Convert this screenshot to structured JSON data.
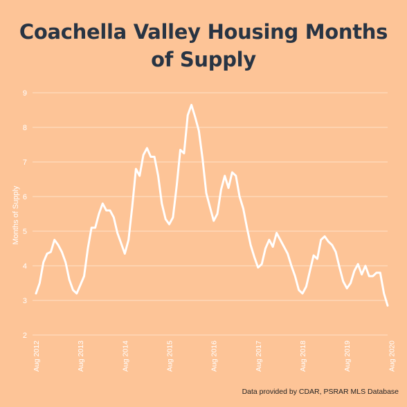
{
  "title_lines": [
    "Coachella Valley Housing Months",
    "of Supply"
  ],
  "source_note": "Data provided by CDAR, PSRAR MLS Database",
  "colors": {
    "background": "#FDC497",
    "line": "#FFFFFF",
    "grid": "#FFE2C9",
    "title": "#283443",
    "axis_text": "#FFFFFF"
  },
  "chart_data": {
    "type": "line",
    "title": "Coachella Valley Housing Months of Supply",
    "ylabel": "Months of Supply",
    "xlabel": "",
    "ylim": [
      2,
      9
    ],
    "yticks": [
      2,
      3,
      4,
      5,
      6,
      7,
      8,
      9
    ],
    "grid": true,
    "x_start": "Aug 2012",
    "xticks": [
      "Aug 2012",
      "Aug 2013",
      "Aug 2014",
      "Aug 2015",
      "Aug 2016",
      "Aug 2017",
      "Aug 2018",
      "Aug 2019",
      "Aug 2020"
    ],
    "series": [
      {
        "values": [
          3.2,
          3.5,
          4.1,
          4.35,
          4.4,
          4.75,
          4.6,
          4.4,
          4.1,
          3.6,
          3.3,
          3.2,
          3.45,
          3.7,
          4.5,
          5.1,
          5.1,
          5.5,
          5.8,
          5.6,
          5.6,
          5.4,
          4.95,
          4.65,
          4.35,
          4.75,
          5.7,
          6.8,
          6.6,
          7.2,
          7.4,
          7.15,
          7.15,
          6.6,
          5.8,
          5.35,
          5.2,
          5.4,
          6.3,
          7.35,
          7.25,
          8.35,
          8.65,
          8.3,
          7.9,
          7.1,
          6.1,
          5.7,
          5.3,
          5.5,
          6.2,
          6.6,
          6.25,
          6.7,
          6.6,
          6.0,
          5.65,
          5.1,
          4.6,
          4.25,
          3.95,
          4.05,
          4.5,
          4.75,
          4.55,
          4.95,
          4.75,
          4.55,
          4.35,
          4.0,
          3.7,
          3.3,
          3.2,
          3.4,
          3.85,
          4.3,
          4.2,
          4.75,
          4.85,
          4.7,
          4.6,
          4.4,
          3.95,
          3.55,
          3.35,
          3.5,
          3.85,
          4.05,
          3.75,
          4.0,
          3.7,
          3.7,
          3.8,
          3.8,
          3.2,
          2.85
        ]
      }
    ]
  }
}
